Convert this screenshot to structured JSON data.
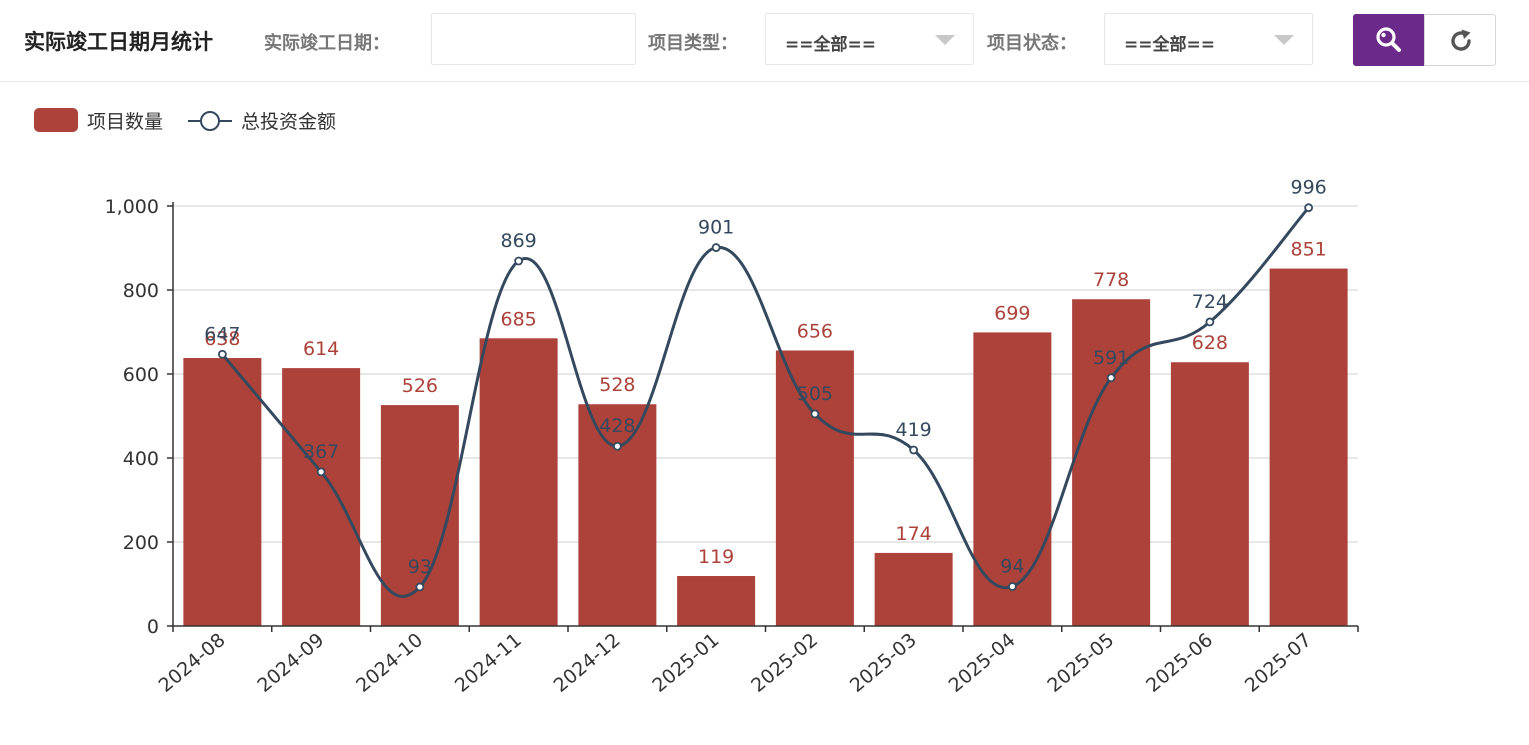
{
  "header": {
    "title": "实际竣工日期月统计",
    "date_label": "实际竣工日期：",
    "date_value": "",
    "type_label": "项目类型：",
    "type_value": "==全部==",
    "status_label": "项目状态：",
    "status_value": "==全部==",
    "search_icon": "search-icon",
    "refresh_icon": "refresh-icon"
  },
  "colors": {
    "bar": "#ad423a",
    "line": "#34495e",
    "accent": "#6b2a8a"
  },
  "chart_data": {
    "type": "bar",
    "categories": [
      "2024-08",
      "2024-09",
      "2024-10",
      "2024-11",
      "2024-12",
      "2025-01",
      "2025-02",
      "2025-03",
      "2025-04",
      "2025-05",
      "2025-06",
      "2025-07"
    ],
    "series": [
      {
        "name": "项目数量",
        "type": "bar",
        "values": [
          638,
          614,
          526,
          685,
          528,
          119,
          656,
          174,
          699,
          778,
          628,
          851
        ]
      },
      {
        "name": "总投资金额",
        "type": "line",
        "smooth": true,
        "values": [
          647,
          367,
          93,
          869,
          428,
          901,
          505,
          419,
          94,
          591,
          724,
          996
        ]
      }
    ],
    "ylim": [
      0,
      1000
    ],
    "yticks": [
      "0",
      "200",
      "400",
      "600",
      "800",
      "1,000"
    ],
    "legend": "top-left",
    "grid": true
  }
}
